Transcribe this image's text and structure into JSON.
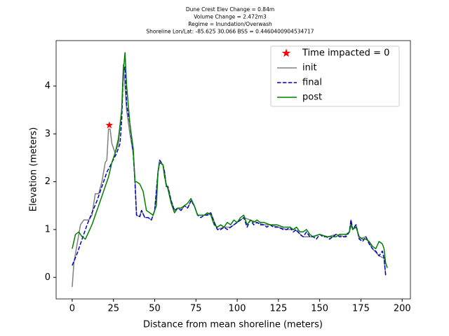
{
  "chart_data": {
    "type": "line",
    "title": [
      "Dune Crest Elev Change = 0.84m",
      "Volume Change = 2.472m3",
      "Regime = Inundation/Overwash",
      "Shoreline Lon/Lat: -85.625 30.066   BSS = 0.4460400904534717"
    ],
    "xlabel": "Distance from mean shoreline (meters)",
    "ylabel": "Elevation (meters)",
    "xlim": [
      -9.75,
      205
    ],
    "ylim": [
      -0.45,
      4.95
    ],
    "xticks": [
      0,
      25,
      50,
      75,
      100,
      125,
      150,
      175,
      200
    ],
    "yticks": [
      0,
      1,
      2,
      3,
      4
    ],
    "legend": "upper right",
    "series": [
      {
        "name": "Time impacted = 0",
        "color": "#ff0000",
        "marker": "*",
        "linestyle": "none",
        "x": [
          22.5
        ],
        "values": [
          3.18
        ]
      },
      {
        "name": "init",
        "color": "#808080",
        "linestyle": "solid",
        "x": [
          0,
          1,
          3,
          5,
          7,
          10,
          12,
          14,
          16,
          18,
          20,
          21,
          22,
          23,
          24,
          26,
          28,
          30,
          31,
          32,
          33,
          35,
          37,
          38,
          39,
          41,
          42,
          44,
          46,
          48,
          50,
          52,
          53,
          55,
          56,
          57,
          58,
          60,
          62,
          64,
          66,
          68,
          70,
          72,
          74,
          76,
          80,
          84,
          88,
          92,
          96,
          100,
          104,
          108,
          112,
          116,
          120,
          125,
          130,
          135,
          140,
          145,
          150,
          155,
          160,
          165,
          168,
          169,
          170,
          172,
          174,
          178,
          182,
          186,
          189,
          190
        ],
        "values": [
          -0.2,
          0.3,
          0.7,
          1.1,
          1.2,
          1.2,
          1.3,
          1.75,
          1.75,
          2.0,
          2.4,
          2.45,
          3.1,
          3.1,
          2.8,
          2.6,
          2.8,
          3.5,
          4.45,
          4.0,
          3.5,
          3.0,
          2.6,
          2.1,
          1.3,
          1.27,
          1.4,
          1.25,
          1.25,
          1.2,
          1.4,
          2.2,
          2.45,
          2.35,
          2.2,
          1.9,
          1.9,
          1.6,
          1.4,
          1.45,
          1.4,
          1.5,
          1.45,
          1.6,
          1.5,
          1.3,
          1.3,
          1.35,
          1.0,
          1.05,
          1.05,
          1.15,
          1.25,
          1.2,
          1.15,
          1.1,
          1.1,
          1.05,
          1.0,
          1.0,
          0.85,
          0.85,
          0.9,
          0.85,
          0.9,
          0.85,
          0.95,
          1.2,
          1.0,
          1.1,
          0.8,
          0.85,
          0.6,
          0.45,
          0.4,
          0.05
        ]
      },
      {
        "name": "final",
        "color": "#0000cc",
        "linestyle": "dashed",
        "x": [
          0,
          3,
          6,
          9,
          12,
          15,
          18,
          21,
          24,
          27,
          29,
          30,
          31,
          32,
          33,
          35,
          37,
          38,
          39,
          41,
          42,
          44,
          46,
          48,
          50,
          52,
          53,
          55,
          56,
          57,
          58,
          60,
          62,
          64,
          66,
          68,
          70,
          72,
          74,
          76,
          78,
          80,
          82,
          84,
          86,
          88,
          90,
          92,
          94,
          96,
          98,
          100,
          102,
          104,
          106,
          108,
          110,
          112,
          114,
          116,
          118,
          120,
          122,
          125,
          128,
          130,
          132,
          134,
          136,
          138,
          140,
          142,
          144,
          146,
          148,
          150,
          152,
          154,
          156,
          158,
          160,
          162,
          164,
          166,
          168,
          169,
          170,
          172,
          174,
          176,
          178,
          180,
          182,
          184,
          186,
          188,
          189,
          190,
          191
        ],
        "values": [
          0.25,
          0.5,
          0.8,
          1.1,
          1.35,
          1.6,
          1.9,
          2.2,
          2.4,
          2.6,
          2.8,
          3.3,
          4.3,
          4.4,
          3.6,
          3.2,
          2.6,
          2.0,
          1.3,
          1.27,
          1.4,
          1.25,
          1.25,
          1.2,
          1.4,
          2.2,
          2.45,
          2.35,
          2.2,
          1.9,
          1.9,
          1.6,
          1.4,
          1.45,
          1.4,
          1.5,
          1.45,
          1.6,
          1.5,
          1.3,
          1.25,
          1.3,
          1.3,
          1.35,
          1.15,
          1.0,
          1.0,
          1.05,
          1.0,
          1.05,
          1.1,
          1.15,
          1.2,
          1.25,
          1.05,
          1.2,
          1.1,
          1.15,
          1.1,
          1.1,
          1.05,
          1.1,
          1.05,
          1.05,
          1.0,
          1.0,
          1.05,
          0.95,
          1.0,
          0.9,
          0.85,
          0.95,
          0.85,
          0.85,
          0.8,
          0.9,
          0.85,
          0.85,
          0.8,
          0.85,
          0.9,
          0.85,
          0.85,
          0.85,
          0.95,
          1.2,
          1.0,
          1.1,
          0.8,
          0.75,
          0.85,
          0.7,
          0.6,
          0.55,
          0.45,
          0.55,
          0.4,
          0.05,
          0.05
        ]
      },
      {
        "name": "post",
        "color": "#008000",
        "linestyle": "solid",
        "x": [
          0,
          2,
          4,
          6,
          8,
          10,
          12,
          14,
          16,
          18,
          20,
          22,
          24,
          26,
          28,
          30,
          31,
          32,
          33,
          35,
          37,
          38,
          39,
          41,
          43,
          45,
          47,
          49,
          51,
          52,
          53,
          55,
          56,
          57,
          58,
          60,
          62,
          64,
          66,
          68,
          70,
          72,
          74,
          76,
          80,
          82,
          84,
          86,
          88,
          90,
          92,
          94,
          96,
          98,
          100,
          102,
          104,
          106,
          108,
          110,
          112,
          114,
          116,
          120,
          124,
          128,
          132,
          134,
          136,
          138,
          140,
          142,
          144,
          146,
          150,
          154,
          158,
          160,
          162,
          164,
          166,
          168,
          169,
          170,
          172,
          174,
          176,
          178,
          180,
          182,
          184,
          186,
          188,
          189,
          190,
          191
        ],
        "values": [
          0.6,
          0.9,
          0.95,
          0.85,
          0.8,
          0.95,
          1.1,
          1.3,
          1.5,
          1.7,
          1.9,
          2.1,
          2.4,
          2.6,
          2.9,
          3.5,
          4.3,
          4.7,
          4.0,
          3.2,
          2.7,
          2.0,
          2.0,
          1.95,
          1.8,
          1.4,
          1.35,
          1.3,
          1.5,
          2.2,
          2.4,
          2.35,
          2.1,
          1.95,
          1.85,
          1.55,
          1.35,
          1.45,
          1.45,
          1.5,
          1.55,
          1.65,
          1.5,
          1.3,
          1.3,
          1.35,
          1.3,
          1.1,
          1.05,
          1.1,
          1.05,
          1.15,
          1.1,
          1.2,
          1.15,
          1.25,
          1.3,
          1.1,
          1.2,
          1.15,
          1.2,
          1.15,
          1.15,
          1.1,
          1.1,
          1.05,
          1.05,
          1.0,
          1.05,
          0.95,
          0.95,
          1.0,
          0.9,
          0.85,
          0.9,
          0.85,
          0.85,
          0.85,
          0.9,
          0.9,
          0.9,
          0.95,
          1.1,
          1.0,
          1.05,
          0.85,
          0.8,
          0.8,
          0.75,
          0.65,
          0.6,
          0.75,
          0.7,
          0.6,
          0.3,
          0.2
        ]
      }
    ]
  }
}
